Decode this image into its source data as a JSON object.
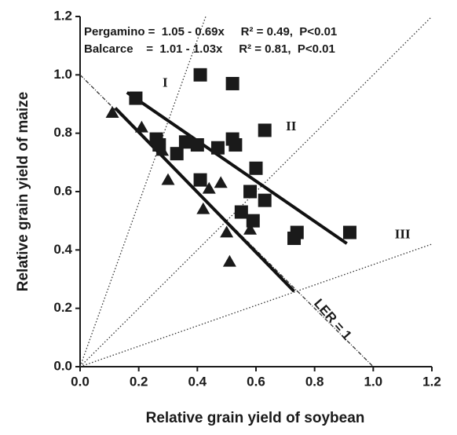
{
  "chart_data": {
    "type": "scatter",
    "xlabel": "Relative grain yield of soybean",
    "ylabel": "Relative grain yield of maize",
    "xlim": [
      0,
      1.2
    ],
    "ylim": [
      0,
      1.2
    ],
    "xticks": [
      {
        "value": 0,
        "label": "0.0"
      },
      {
        "value": 0.2,
        "label": "0.2"
      },
      {
        "value": 0.4,
        "label": "0.4"
      },
      {
        "value": 0.6,
        "label": "0.6"
      },
      {
        "value": 0.8,
        "label": "0.8"
      },
      {
        "value": 1,
        "label": "1.0"
      },
      {
        "value": 1.2,
        "label": "1.2"
      }
    ],
    "yticks": [
      {
        "value": 0,
        "label": "0.0"
      },
      {
        "value": 0.2,
        "label": "0.2"
      },
      {
        "value": 0.4,
        "label": "0.4"
      },
      {
        "value": 0.6,
        "label": "0.6"
      },
      {
        "value": 0.8,
        "label": "0.8"
      },
      {
        "value": 1,
        "label": "1.0"
      },
      {
        "value": 1.2,
        "label": "1.2"
      }
    ],
    "series": [
      {
        "name": "Pergamino",
        "marker": "square",
        "color": "#1a1a1a",
        "x": [
          0.19,
          0.41,
          0.52,
          0.26,
          0.27,
          0.33,
          0.36,
          0.4,
          0.47,
          0.52,
          0.53,
          0.63,
          0.41,
          0.6,
          0.58,
          0.63,
          0.55,
          0.59,
          0.74,
          0.73,
          0.92
        ],
        "values": [
          0.92,
          1.0,
          0.97,
          0.78,
          0.76,
          0.73,
          0.77,
          0.76,
          0.75,
          0.78,
          0.76,
          0.81,
          0.64,
          0.68,
          0.6,
          0.57,
          0.53,
          0.5,
          0.46,
          0.44,
          0.46
        ]
      },
      {
        "name": "Balcarce",
        "marker": "triangle",
        "color": "#1a1a1a",
        "x": [
          0.11,
          0.21,
          0.27,
          0.28,
          0.3,
          0.44,
          0.48,
          0.42,
          0.5,
          0.58,
          0.51
        ],
        "values": [
          0.87,
          0.82,
          0.78,
          0.74,
          0.64,
          0.61,
          0.63,
          0.54,
          0.46,
          0.47,
          0.36
        ]
      }
    ],
    "fits": [
      {
        "equation": "Pergamino =  1.05 - 0.69x     R² = 0.49,  P<0.01",
        "intercept": 1.05,
        "slope": -0.69,
        "x_range": [
          0.16,
          0.91
        ]
      },
      {
        "equation": "Balcarce    =  1.01 - 1.03x     R² = 0.81,  P<0.01",
        "intercept": 1.01,
        "slope": -1.03,
        "x_range": [
          0.12,
          0.73
        ]
      }
    ],
    "reference_lines": [
      {
        "intercept": 1,
        "slope": -1,
        "style": "dashdot"
      },
      {
        "intercept": 0,
        "slope": 2.8,
        "style": "dotted"
      },
      {
        "intercept": 0,
        "slope": 1,
        "style": "dotted"
      },
      {
        "intercept": 0,
        "slope": 0.35,
        "style": "dotted"
      }
    ],
    "annotations": [
      "I",
      "II",
      "III",
      "LER = 1"
    ]
  }
}
